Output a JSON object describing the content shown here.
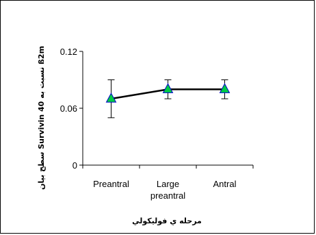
{
  "chart_data": {
    "type": "line",
    "title": "",
    "xlabel": "مرحله ي فوليكولي",
    "ylabel": "سطح بيان Survivin 40 نسبت به ß2m",
    "categories": [
      "Preantral",
      "Large preantral",
      "Antral"
    ],
    "category_lines": [
      [
        "Preantral"
      ],
      [
        "Large",
        "preantral"
      ],
      [
        "Antral"
      ]
    ],
    "series": [
      {
        "values": [
          0.07,
          0.08,
          0.08
        ],
        "error": [
          0.02,
          0.01,
          0.01
        ],
        "marker": "triangle",
        "marker_color": "#00cc44",
        "marker_edge_color": "#0000cc",
        "line_color": "#000000"
      }
    ],
    "ylim": [
      0,
      0.12
    ],
    "yticks": [
      0,
      0.06,
      0.12
    ],
    "ytick_labels": [
      "0",
      "0.06",
      "0.12"
    ],
    "grid": false,
    "legend": "none"
  }
}
